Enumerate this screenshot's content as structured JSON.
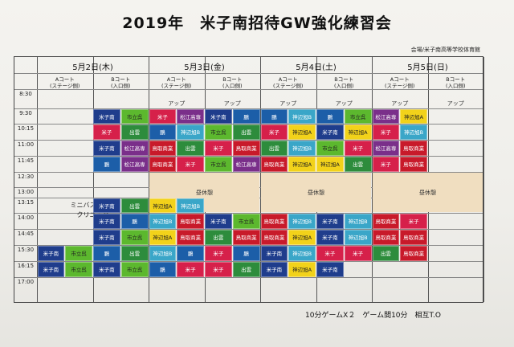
{
  "title": "2019年　米子南招待GW強化練習会",
  "venue": "会場/米子南高等学校体育館",
  "days": [
    "5月2日(木)",
    "5月3日(金)",
    "5月4日(土)",
    "5月5日(日)"
  ],
  "court_a": [
    "Aコート",
    "(ステージ側)"
  ],
  "court_b": [
    "Bコート",
    "(入口側)"
  ],
  "warmup": "アップ",
  "times": [
    "8:30",
    "9:30",
    "10:15",
    "11:00",
    "11:45",
    "12:30",
    "13:00",
    "13:15",
    "14:00",
    "14:45",
    "15:30",
    "16:15",
    "17:00"
  ],
  "lunch": "昼休憩",
  "mini_basket": [
    "ミニバスケット",
    "クリニック"
  ],
  "footer": "10分ゲームX２　ゲーム間10分　相互T.O",
  "colors": {
    "米子南": "#1f3d8c",
    "市立呉": "#5cb82e",
    "出雲": "#2d8c3c",
    "鵬": "#1c5ea8",
    "松江高専": "#7a2f8a",
    "米子": "#d6204a",
    "神辺旭A": "#f2d21a",
    "神辺旭B": "#3aa6c8",
    "鳥取商業": "#c81a2a"
  },
  "cells": [
    {
      "c": 3,
      "r": 1,
      "t": "米子南"
    },
    {
      "c": 4,
      "r": 1,
      "t": "市立呉"
    },
    {
      "c": 5,
      "r": 1,
      "t": "米子"
    },
    {
      "c": 6,
      "r": 1,
      "t": "松江高専"
    },
    {
      "c": 7,
      "r": 1,
      "t": "米子南"
    },
    {
      "c": 8,
      "r": 1,
      "t": "鵬"
    },
    {
      "c": 9,
      "r": 1,
      "t": "鵬"
    },
    {
      "c": 10,
      "r": 1,
      "t": "神辺旭B"
    },
    {
      "c": 11,
      "r": 1,
      "t": "鵬"
    },
    {
      "c": 12,
      "r": 1,
      "t": "市立呉"
    },
    {
      "c": 13,
      "r": 1,
      "t": "松江高専"
    },
    {
      "c": 14,
      "r": 1,
      "t": "神辺旭A"
    },
    {
      "c": 3,
      "r": 2,
      "t": "米子"
    },
    {
      "c": 4,
      "r": 2,
      "t": "出雲"
    },
    {
      "c": 5,
      "r": 2,
      "t": "鵬"
    },
    {
      "c": 6,
      "r": 2,
      "t": "神辺旭B"
    },
    {
      "c": 7,
      "r": 2,
      "t": "市立呉"
    },
    {
      "c": 8,
      "r": 2,
      "t": "出雲"
    },
    {
      "c": 9,
      "r": 2,
      "t": "米子"
    },
    {
      "c": 10,
      "r": 2,
      "t": "神辺旭A"
    },
    {
      "c": 11,
      "r": 2,
      "t": "米子南"
    },
    {
      "c": 12,
      "r": 2,
      "t": "神辺旭A"
    },
    {
      "c": 13,
      "r": 2,
      "t": "米子"
    },
    {
      "c": 14,
      "r": 2,
      "t": "神辺旭B"
    },
    {
      "c": 3,
      "r": 3,
      "t": "米子南"
    },
    {
      "c": 4,
      "r": 3,
      "t": "松江高専"
    },
    {
      "c": 5,
      "r": 3,
      "t": "鳥取商業"
    },
    {
      "c": 6,
      "r": 3,
      "t": "出雲"
    },
    {
      "c": 7,
      "r": 3,
      "t": "米子"
    },
    {
      "c": 8,
      "r": 3,
      "t": "鳥取商業"
    },
    {
      "c": 9,
      "r": 3,
      "t": "出雲"
    },
    {
      "c": 10,
      "r": 3,
      "t": "神辺旭B"
    },
    {
      "c": 11,
      "r": 3,
      "t": "市立呉"
    },
    {
      "c": 12,
      "r": 3,
      "t": "米子"
    },
    {
      "c": 13,
      "r": 3,
      "t": "松江高専"
    },
    {
      "c": 14,
      "r": 3,
      "t": "鳥取商業"
    },
    {
      "c": 3,
      "r": 4,
      "t": "鵬"
    },
    {
      "c": 4,
      "r": 4,
      "t": "松江高専"
    },
    {
      "c": 5,
      "r": 4,
      "t": "鳥取商業"
    },
    {
      "c": 6,
      "r": 4,
      "t": "米子"
    },
    {
      "c": 7,
      "r": 4,
      "t": "市立呉"
    },
    {
      "c": 8,
      "r": 4,
      "t": "松江高専"
    },
    {
      "c": 9,
      "r": 4,
      "t": "鳥取商業"
    },
    {
      "c": 10,
      "r": 4,
      "t": "神辺旭A"
    },
    {
      "c": 11,
      "r": 4,
      "t": "神辺旭A"
    },
    {
      "c": 12,
      "r": 4,
      "t": "出雲"
    },
    {
      "c": 13,
      "r": 4,
      "t": "米子"
    },
    {
      "c": 14,
      "r": 4,
      "t": "鳥取商業"
    },
    {
      "c": 3,
      "r": 7,
      "t": "米子南"
    },
    {
      "c": 4,
      "r": 7,
      "t": "出雲"
    },
    {
      "c": 5,
      "r": 7,
      "t": "神辺旭A"
    },
    {
      "c": 6,
      "r": 7,
      "t": "神辺旭B"
    },
    {
      "c": 3,
      "r": 8,
      "t": "米子南"
    },
    {
      "c": 4,
      "r": 8,
      "t": "鵬"
    },
    {
      "c": 5,
      "r": 8,
      "t": "神辺旭B"
    },
    {
      "c": 6,
      "r": 8,
      "t": "鳥取商業"
    },
    {
      "c": 7,
      "r": 8,
      "t": "米子南"
    },
    {
      "c": 8,
      "r": 8,
      "t": "市立呉"
    },
    {
      "c": 9,
      "r": 8,
      "t": "鳥取商業"
    },
    {
      "c": 10,
      "r": 8,
      "t": "神辺旭B"
    },
    {
      "c": 11,
      "r": 8,
      "t": "米子南"
    },
    {
      "c": 12,
      "r": 8,
      "t": "神辺旭B"
    },
    {
      "c": 13,
      "r": 8,
      "t": "鳥取商業"
    },
    {
      "c": 14,
      "r": 8,
      "t": "米子"
    },
    {
      "c": 3,
      "r": 9,
      "t": "米子南"
    },
    {
      "c": 4,
      "r": 9,
      "t": "市立呉"
    },
    {
      "c": 5,
      "r": 9,
      "t": "神辺旭A"
    },
    {
      "c": 6,
      "r": 9,
      "t": "鳥取商業"
    },
    {
      "c": 7,
      "r": 9,
      "t": "出雲"
    },
    {
      "c": 8,
      "r": 9,
      "t": "鳥取商業"
    },
    {
      "c": 9,
      "r": 9,
      "t": "鳥取商業"
    },
    {
      "c": 10,
      "r": 9,
      "t": "神辺旭A"
    },
    {
      "c": 11,
      "r": 9,
      "t": "米子南"
    },
    {
      "c": 12,
      "r": 9,
      "t": "神辺旭B"
    },
    {
      "c": 13,
      "r": 9,
      "t": "鳥取商業"
    },
    {
      "c": 14,
      "r": 9,
      "t": "鳥取商業"
    },
    {
      "c": 1,
      "r": 10,
      "t": "米子南"
    },
    {
      "c": 2,
      "r": 10,
      "t": "市立呉"
    },
    {
      "c": 3,
      "r": 10,
      "t": "鵬"
    },
    {
      "c": 4,
      "r": 10,
      "t": "出雲"
    },
    {
      "c": 5,
      "r": 10,
      "t": "神辺旭B"
    },
    {
      "c": 6,
      "r": 10,
      "t": "鵬"
    },
    {
      "c": 7,
      "r": 10,
      "t": "米子"
    },
    {
      "c": 8,
      "r": 10,
      "t": "鵬"
    },
    {
      "c": 9,
      "r": 10,
      "t": "米子南"
    },
    {
      "c": 10,
      "r": 10,
      "t": "神辺旭B"
    },
    {
      "c": 11,
      "r": 10,
      "t": "米子"
    },
    {
      "c": 12,
      "r": 10,
      "t": "米子"
    },
    {
      "c": 13,
      "r": 10,
      "t": "出雲"
    },
    {
      "c": 14,
      "r": 10,
      "t": "鳥取商業"
    },
    {
      "c": 1,
      "r": 11,
      "t": "米子南"
    },
    {
      "c": 2,
      "r": 11,
      "t": "市立呉"
    },
    {
      "c": 3,
      "r": 11,
      "t": "米子南"
    },
    {
      "c": 4,
      "r": 11,
      "t": "市立呉"
    },
    {
      "c": 5,
      "r": 11,
      "t": "鵬"
    },
    {
      "c": 6,
      "r": 11,
      "t": "米子"
    },
    {
      "c": 7,
      "r": 11,
      "t": "米子"
    },
    {
      "c": 8,
      "r": 11,
      "t": "出雲"
    },
    {
      "c": 9,
      "r": 11,
      "t": "米子南"
    },
    {
      "c": 10,
      "r": 11,
      "t": "神辺旭A"
    },
    {
      "c": 11,
      "r": 11,
      "t": "米子南"
    }
  ]
}
